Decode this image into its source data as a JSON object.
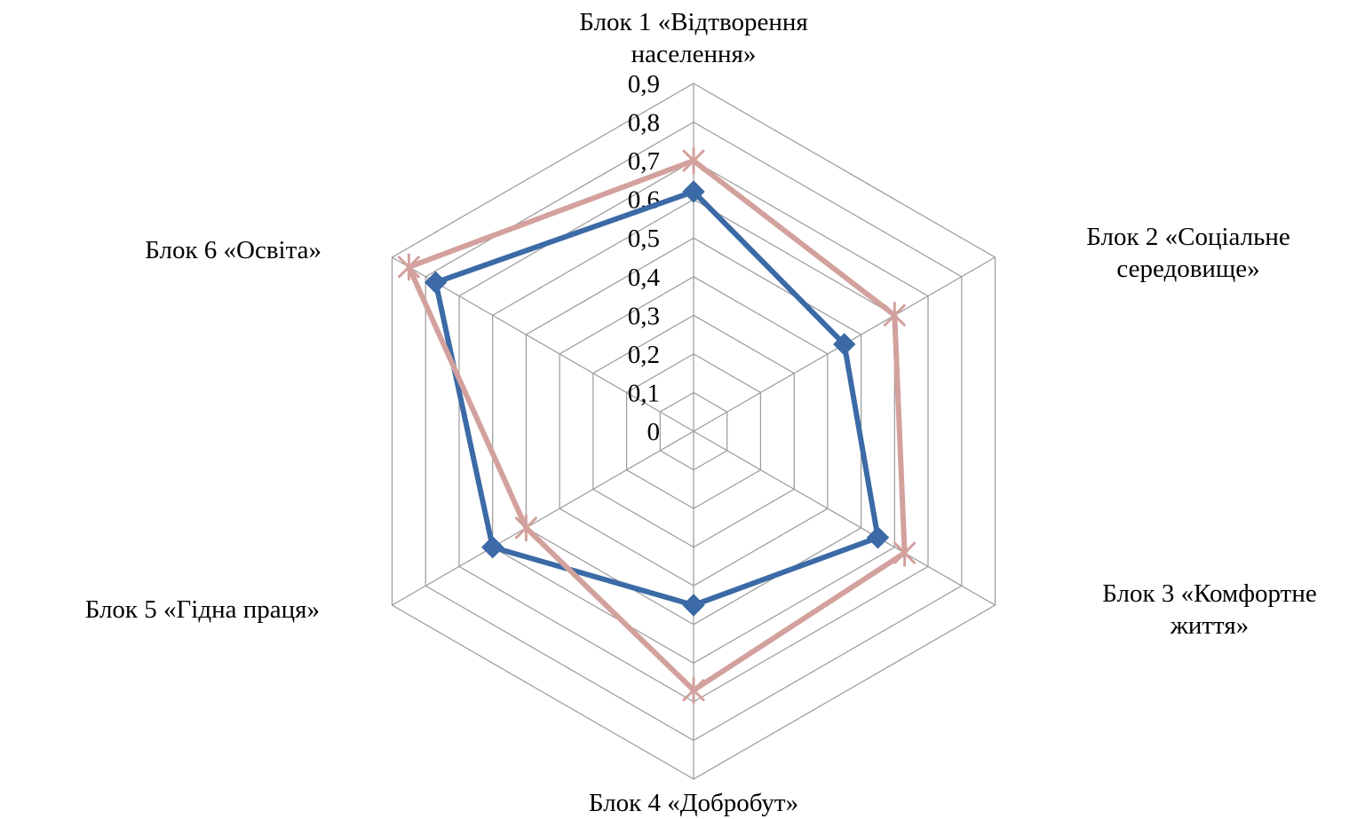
{
  "chart_data": {
    "type": "radar",
    "title": "",
    "categories": [
      [
        "Блок 1 «Відтворення",
        "населення»"
      ],
      [
        "Блок 2 «Соціальне",
        "середовище»"
      ],
      [
        "Блок 3 «Комфортне",
        "життя»"
      ],
      [
        "Блок 4 «Добробут»"
      ],
      [
        "Блок 5 «Гідна праця»"
      ],
      [
        "Блок 6 «Освіта»"
      ]
    ],
    "ticks": [
      "0",
      "0,1",
      "0,2",
      "0,3",
      "0,4",
      "0,5",
      "0,6",
      "0,7",
      "0,8",
      "0,9"
    ],
    "rlim": [
      0,
      0.9
    ],
    "grid": true,
    "legend": "none",
    "series": [
      {
        "color": "#3b6aa6",
        "marker": "diamond",
        "values": [
          0.62,
          0.45,
          0.55,
          0.45,
          0.6,
          0.77
        ]
      },
      {
        "color": "#d3a19d",
        "marker": "asterisk",
        "values": [
          0.7,
          0.6,
          0.63,
          0.67,
          0.5,
          0.85
        ]
      }
    ]
  }
}
